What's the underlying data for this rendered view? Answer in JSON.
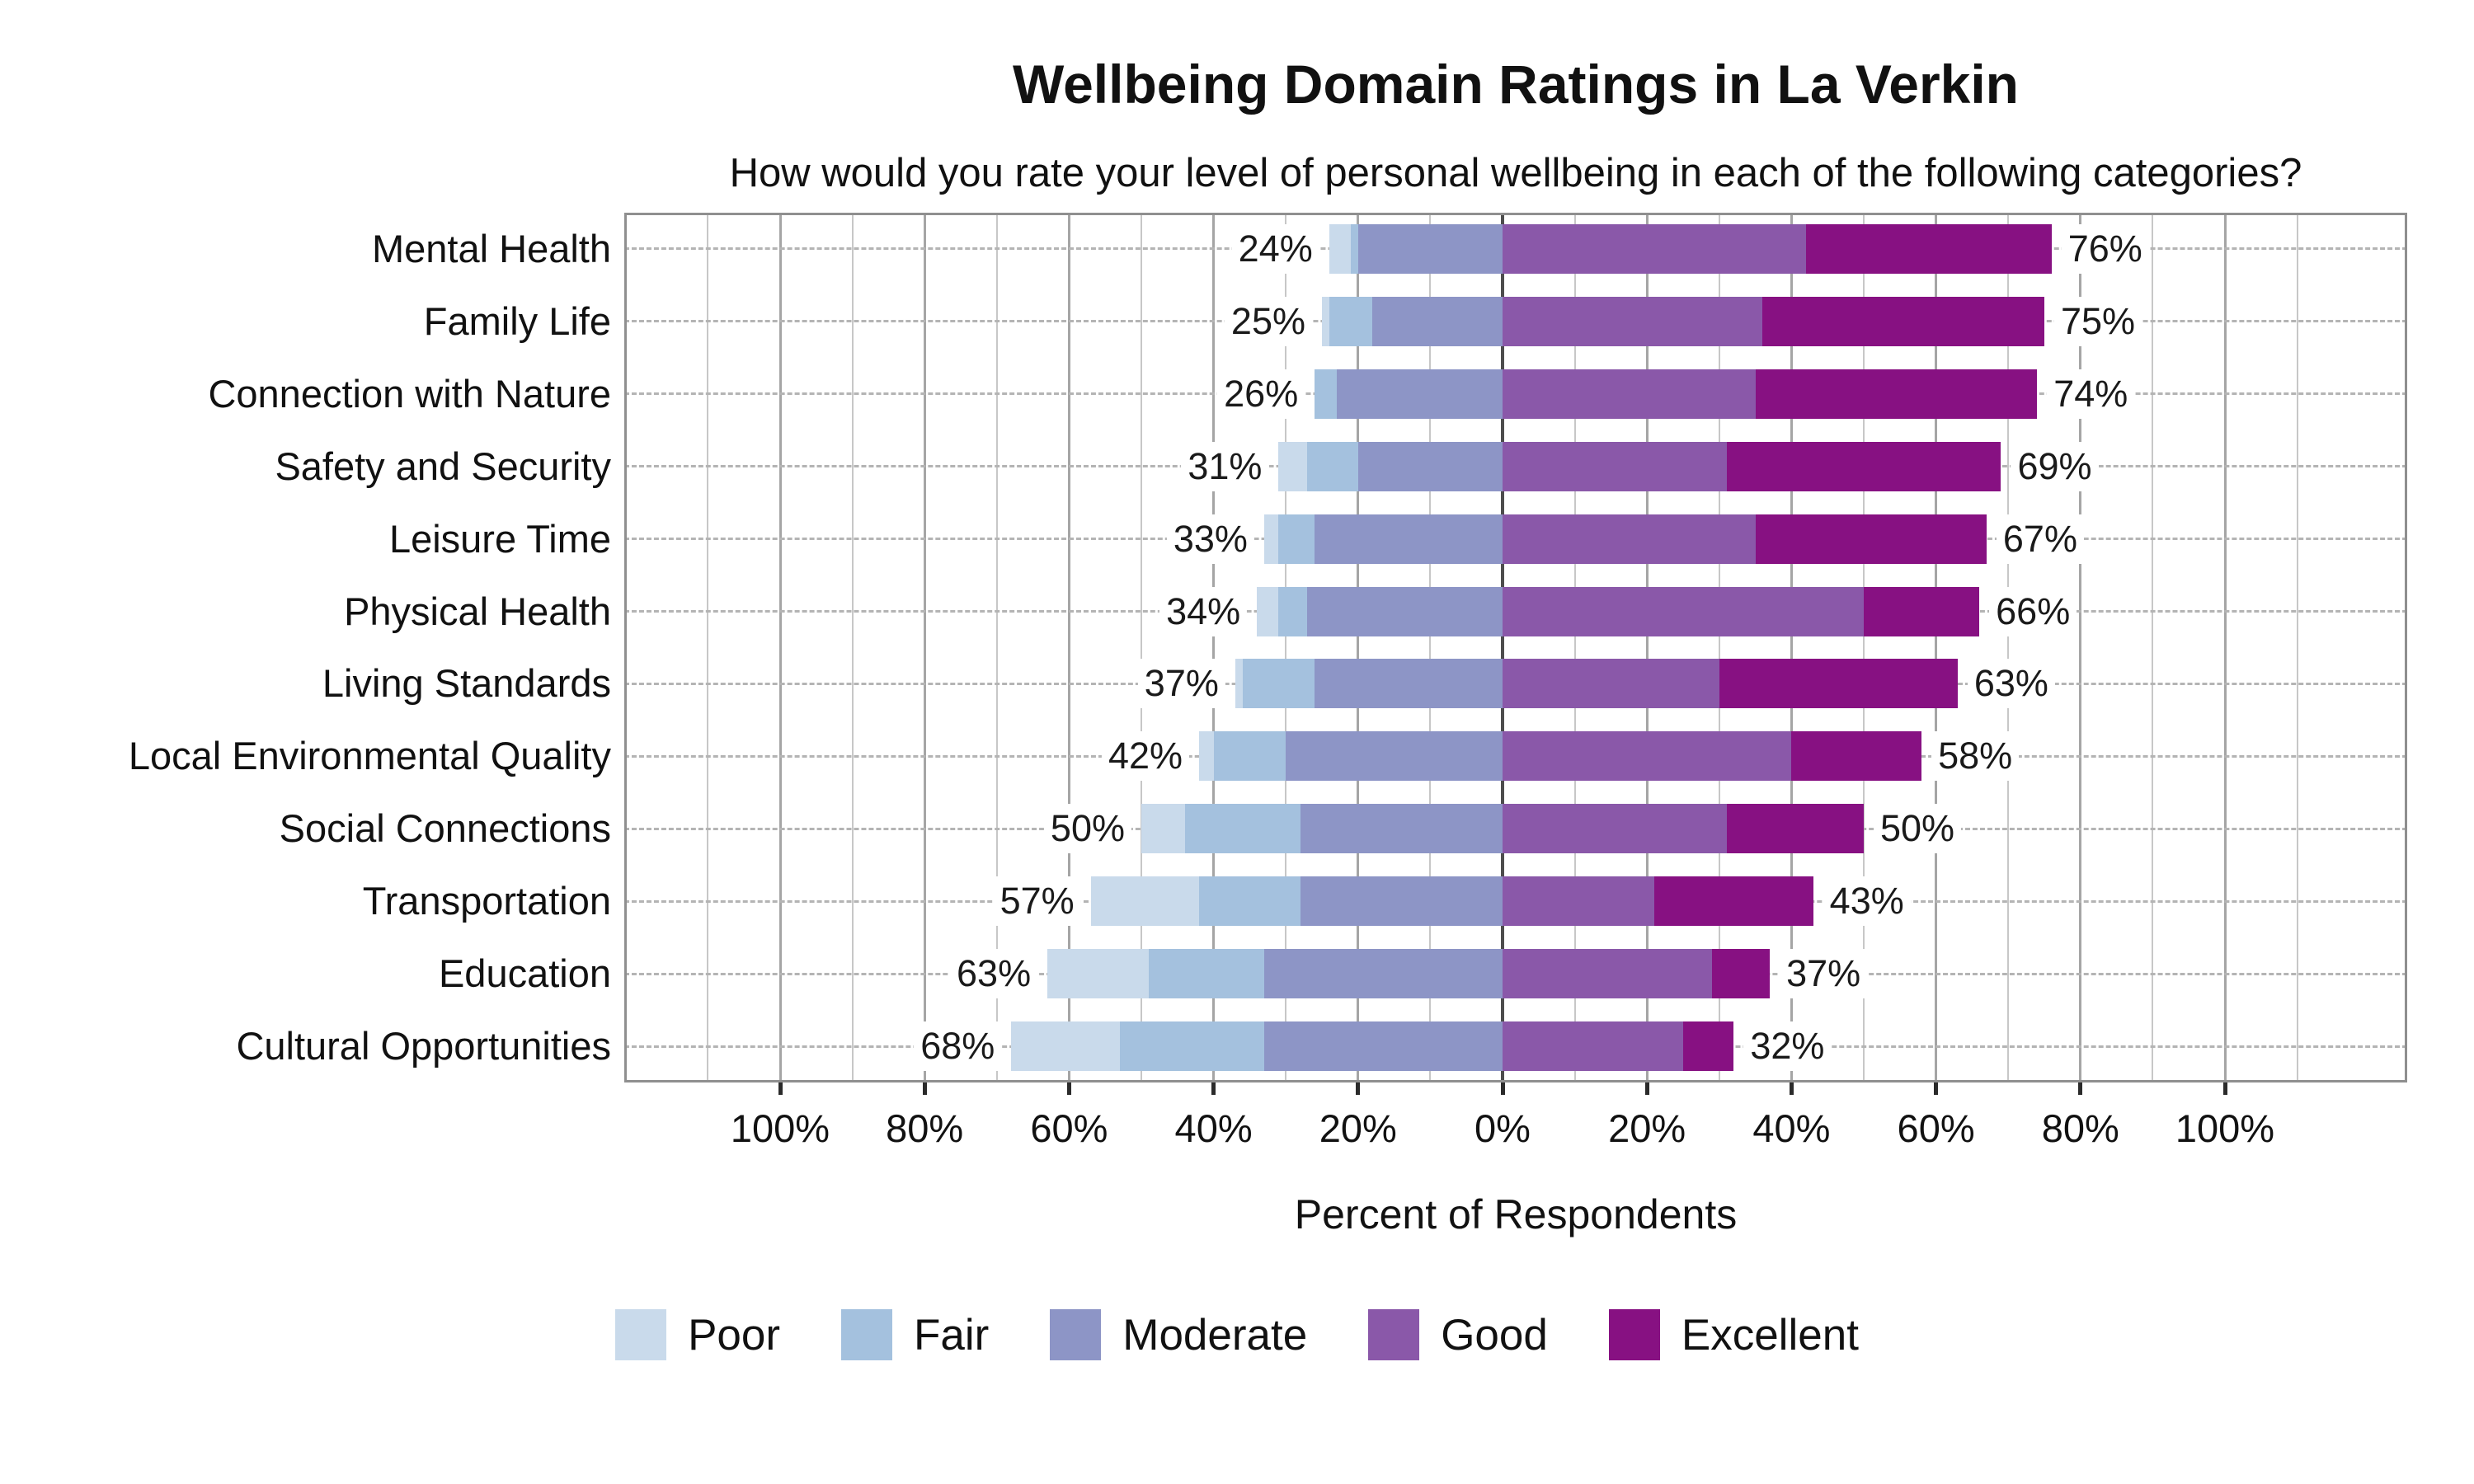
{
  "chart_data": {
    "type": "diverging_stacked_bar",
    "title": "Wellbeing Domain Ratings in La Verkin",
    "subtitle": "How would you rate your level of personal wellbeing in each of the following categories?",
    "xlabel": "Percent of Respondents",
    "legend": [
      "Poor",
      "Fair",
      "Moderate",
      "Good",
      "Excellent"
    ],
    "negative_side": [
      "Poor",
      "Fair",
      "Moderate"
    ],
    "positive_side": [
      "Good",
      "Excellent"
    ],
    "colors": {
      "Poor": "#C9DAEB",
      "Fair": "#A4C1DE",
      "Moderate": "#8D95C6",
      "Good": "#8A58A9",
      "Excellent": "#871182"
    },
    "axis": {
      "tick_values": [
        -100,
        -80,
        -60,
        -40,
        -20,
        0,
        20,
        40,
        60,
        80,
        100
      ],
      "tick_labels": [
        "100%",
        "80%",
        "60%",
        "40%",
        "20%",
        "0%",
        "20%",
        "40%",
        "60%",
        "80%",
        "100%"
      ],
      "minor_gridline_values": [
        -110,
        -90,
        -70,
        -50,
        -30,
        -10,
        10,
        30,
        50,
        70,
        90,
        110
      ],
      "major_gridline_values": [
        -100,
        -80,
        -60,
        -40,
        -20,
        20,
        40,
        60,
        80,
        100
      ],
      "grid": true
    },
    "rows": [
      {
        "category": "Mental Health",
        "values": {
          "Poor": 3,
          "Fair": 1,
          "Moderate": 20,
          "Good": 42,
          "Excellent": 34
        },
        "left_label": "24%",
        "right_label": "76%"
      },
      {
        "category": "Family Life",
        "values": {
          "Poor": 1,
          "Fair": 6,
          "Moderate": 18,
          "Good": 36,
          "Excellent": 39
        },
        "left_label": "25%",
        "right_label": "75%"
      },
      {
        "category": "Connection with Nature",
        "values": {
          "Poor": 0,
          "Fair": 3,
          "Moderate": 23,
          "Good": 35,
          "Excellent": 39
        },
        "left_label": "26%",
        "right_label": "74%"
      },
      {
        "category": "Safety and Security",
        "values": {
          "Poor": 4,
          "Fair": 7,
          "Moderate": 20,
          "Good": 31,
          "Excellent": 38
        },
        "left_label": "31%",
        "right_label": "69%"
      },
      {
        "category": "Leisure Time",
        "values": {
          "Poor": 2,
          "Fair": 5,
          "Moderate": 26,
          "Good": 35,
          "Excellent": 32
        },
        "left_label": "33%",
        "right_label": "67%"
      },
      {
        "category": "Physical Health",
        "values": {
          "Poor": 3,
          "Fair": 4,
          "Moderate": 27,
          "Good": 50,
          "Excellent": 16
        },
        "left_label": "34%",
        "right_label": "66%"
      },
      {
        "category": "Living Standards",
        "values": {
          "Poor": 1,
          "Fair": 10,
          "Moderate": 26,
          "Good": 30,
          "Excellent": 33
        },
        "left_label": "37%",
        "right_label": "63%"
      },
      {
        "category": "Local Environmental Quality",
        "values": {
          "Poor": 2,
          "Fair": 10,
          "Moderate": 30,
          "Good": 40,
          "Excellent": 18
        },
        "left_label": "42%",
        "right_label": "58%"
      },
      {
        "category": "Social Connections",
        "values": {
          "Poor": 6,
          "Fair": 16,
          "Moderate": 28,
          "Good": 31,
          "Excellent": 19
        },
        "left_label": "50%",
        "right_label": "50%"
      },
      {
        "category": "Transportation",
        "values": {
          "Poor": 15,
          "Fair": 14,
          "Moderate": 28,
          "Good": 21,
          "Excellent": 22
        },
        "left_label": "57%",
        "right_label": "43%"
      },
      {
        "category": "Education",
        "values": {
          "Poor": 14,
          "Fair": 16,
          "Moderate": 33,
          "Good": 29,
          "Excellent": 8
        },
        "left_label": "63%",
        "right_label": "37%"
      },
      {
        "category": "Cultural Opportunities",
        "values": {
          "Poor": 15,
          "Fair": 20,
          "Moderate": 33,
          "Good": 25,
          "Excellent": 7
        },
        "left_label": "68%",
        "right_label": "32%"
      }
    ]
  }
}
